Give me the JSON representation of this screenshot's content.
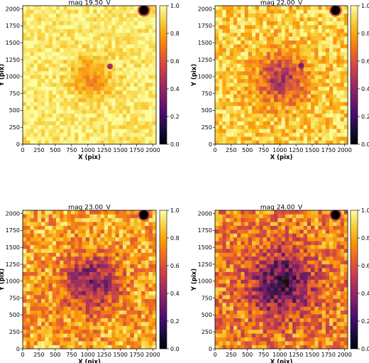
{
  "colormap": {
    "name": "inferno",
    "stops": [
      "#000004",
      "#1b0c41",
      "#4a0c6b",
      "#781c6d",
      "#a52c60",
      "#cf4446",
      "#ed6925",
      "#fb9b06",
      "#f7d13d",
      "#fcffa4"
    ]
  },
  "chart_data": [
    {
      "type": "heatmap",
      "title": "mag 19.50_V",
      "xlabel": "X (pix)",
      "ylabel": "Y (pix)",
      "xlim": [
        0,
        2048
      ],
      "ylim": [
        0,
        2048
      ],
      "xticks": [
        0,
        250,
        500,
        750,
        1000,
        1250,
        1500,
        1750,
        2000
      ],
      "yticks": [
        0,
        250,
        500,
        750,
        1000,
        1250,
        1500,
        1750,
        2000
      ],
      "colorbar": {
        "min": 0.0,
        "max": 1.0,
        "ticks": [
          "0.0",
          "0.2",
          "0.4",
          "0.6",
          "0.8",
          "1.0"
        ]
      },
      "background_level": 0.95,
      "noise_amplitude": 0.09,
      "center": {
        "x": 1050,
        "y": 980,
        "radius": 230,
        "depth": 0.22
      },
      "bright_star": {
        "x": 1340,
        "y": 1150,
        "value": 0.45
      },
      "corner_source": {
        "x": 1860,
        "y": 1980,
        "value": 0.0
      }
    },
    {
      "type": "heatmap",
      "title": "mag 22.00_V",
      "xlabel": "X (pix)",
      "ylabel": "Y (pix)",
      "xlim": [
        0,
        2048
      ],
      "ylim": [
        0,
        2048
      ],
      "xticks": [
        0,
        250,
        500,
        750,
        1000,
        1250,
        1500,
        1750,
        2000
      ],
      "yticks": [
        0,
        250,
        500,
        750,
        1000,
        1250,
        1500,
        1750,
        2000
      ],
      "colorbar": {
        "min": 0.0,
        "max": 1.0,
        "ticks": [
          "0.0",
          "0.2",
          "0.4",
          "0.6",
          "0.8",
          "1.0"
        ]
      },
      "background_level": 0.88,
      "noise_amplitude": 0.15,
      "center": {
        "x": 1030,
        "y": 970,
        "radius": 260,
        "depth": 0.45
      },
      "bright_star": {
        "x": 1330,
        "y": 1160,
        "value": 0.35
      },
      "corner_source": {
        "x": 1860,
        "y": 1980,
        "value": 0.0
      }
    },
    {
      "type": "heatmap",
      "title": "mag 23.00_V",
      "xlabel": "X (pix)",
      "ylabel": "Y (pix)",
      "xlim": [
        0,
        2048
      ],
      "ylim": [
        0,
        2048
      ],
      "xticks": [
        0,
        250,
        500,
        750,
        1000,
        1250,
        1500,
        1750,
        2000
      ],
      "yticks": [
        0,
        250,
        500,
        750,
        1000,
        1250,
        1500,
        1750,
        2000
      ],
      "colorbar": {
        "min": 0.0,
        "max": 1.0,
        "ticks": [
          "0.0",
          "0.2",
          "0.4",
          "0.6",
          "0.8",
          "1.0"
        ]
      },
      "background_level": 0.8,
      "noise_amplitude": 0.2,
      "center": {
        "x": 1050,
        "y": 980,
        "radius": 300,
        "depth": 0.5
      },
      "bright_star": {
        "x": 1330,
        "y": 1160,
        "value": 0.55
      },
      "corner_source": {
        "x": 1860,
        "y": 1980,
        "value": 0.0
      }
    },
    {
      "type": "heatmap",
      "title": "mag 24.00_V",
      "xlabel": "X (pix)",
      "ylabel": "Y (pix)",
      "xlim": [
        0,
        2048
      ],
      "ylim": [
        0,
        2048
      ],
      "xticks": [
        0,
        250,
        500,
        750,
        1000,
        1250,
        1500,
        1750,
        2000
      ],
      "yticks": [
        0,
        250,
        500,
        750,
        1000,
        1250,
        1500,
        1750,
        2000
      ],
      "colorbar": {
        "min": 0.0,
        "max": 1.0,
        "ticks": [
          "0.0",
          "0.2",
          "0.4",
          "0.6",
          "0.8",
          "1.0"
        ]
      },
      "background_level": 0.72,
      "noise_amplitude": 0.22,
      "center": {
        "x": 1030,
        "y": 980,
        "radius": 340,
        "depth": 0.55
      },
      "bright_star": {
        "x": 1330,
        "y": 1160,
        "value": 0.5
      },
      "corner_source": {
        "x": 1860,
        "y": 1980,
        "value": 0.0
      }
    }
  ]
}
